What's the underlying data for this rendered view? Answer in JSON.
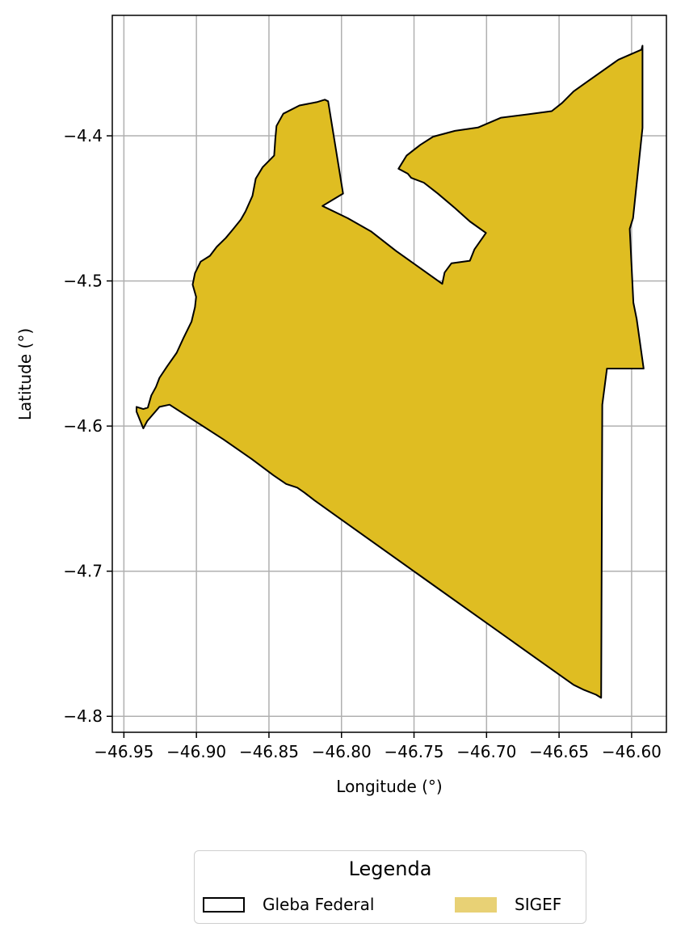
{
  "chart_data": {
    "type": "map",
    "title": "",
    "xlabel": "Longitude (°)",
    "ylabel": "Latitude (°)",
    "xlim": [
      -46.958,
      -46.576
    ],
    "ylim": [
      -4.811,
      -4.317
    ],
    "x_ticks": [
      "−46.95",
      "−46.90",
      "−46.85",
      "−46.80",
      "−46.75",
      "−46.70",
      "−46.65",
      "−46.60"
    ],
    "x_tick_values": [
      -46.95,
      -46.9,
      -46.85,
      -46.8,
      -46.75,
      -46.7,
      -46.65,
      -46.6
    ],
    "y_ticks": [
      "−4.4",
      "−4.5",
      "−4.6",
      "−4.7",
      "−4.8"
    ],
    "y_tick_values": [
      -4.4,
      -4.5,
      -4.6,
      -4.7,
      -4.8
    ],
    "grid": true,
    "legend": {
      "title": "Legenda",
      "placement": "bottom-center",
      "entries": [
        {
          "label": "Gleba Federal",
          "style": "outline",
          "edge_color": "#000000",
          "fill_color": "none"
        },
        {
          "label": "SIGEF",
          "style": "fill",
          "edge_color": "none",
          "fill_color": "#e8d175"
        }
      ]
    },
    "series": [
      {
        "name": "SIGEF",
        "fill_color": "#dfbd22",
        "edge_color": "#000000",
        "polygon_lonlat": [
          [
            -46.9413,
            -4.5868
          ],
          [
            -46.9366,
            -4.5883
          ],
          [
            -46.9335,
            -4.5873
          ],
          [
            -46.9311,
            -4.5789
          ],
          [
            -46.9279,
            -4.573
          ],
          [
            -46.9255,
            -4.5668
          ],
          [
            -46.92,
            -4.5586
          ],
          [
            -46.9136,
            -4.5495
          ],
          [
            -46.9089,
            -4.5393
          ],
          [
            -46.9034,
            -4.528
          ],
          [
            -46.901,
            -4.518
          ],
          [
            -46.9002,
            -4.511
          ],
          [
            -46.9026,
            -4.5025
          ],
          [
            -46.901,
            -4.4946
          ],
          [
            -46.8971,
            -4.4867
          ],
          [
            -46.8907,
            -4.4827
          ],
          [
            -46.886,
            -4.4765
          ],
          [
            -46.8797,
            -4.4703
          ],
          [
            -46.8749,
            -4.4646
          ],
          [
            -46.8694,
            -4.4578
          ],
          [
            -46.8662,
            -4.4521
          ],
          [
            -46.8614,
            -4.4414
          ],
          [
            -46.8591,
            -4.4295
          ],
          [
            -46.8543,
            -4.4216
          ],
          [
            -46.8464,
            -4.4136
          ],
          [
            -46.8456,
            -4.4023
          ],
          [
            -46.8448,
            -4.3932
          ],
          [
            -46.8401,
            -4.3848
          ],
          [
            -46.829,
            -4.3791
          ],
          [
            -46.8171,
            -4.3768
          ],
          [
            -46.8115,
            -4.3751
          ],
          [
            -46.8092,
            -4.3762
          ],
          [
            -46.7989,
            -4.4398
          ],
          [
            -46.8131,
            -4.4483
          ],
          [
            -46.7956,
            -4.4568
          ],
          [
            -46.7797,
            -4.4658
          ],
          [
            -46.7623,
            -4.4794
          ],
          [
            -46.744,
            -4.4924
          ],
          [
            -46.7305,
            -4.502
          ],
          [
            -46.7289,
            -4.4942
          ],
          [
            -46.7242,
            -4.4878
          ],
          [
            -46.7115,
            -4.4861
          ],
          [
            -46.7083,
            -4.4782
          ],
          [
            -46.7004,
            -4.4669
          ],
          [
            -46.7115,
            -4.459
          ],
          [
            -46.7217,
            -4.4499
          ],
          [
            -46.7337,
            -4.4397
          ],
          [
            -46.7432,
            -4.4323
          ],
          [
            -46.7519,
            -4.429
          ],
          [
            -46.7543,
            -4.4261
          ],
          [
            -46.7607,
            -4.4227
          ],
          [
            -46.7551,
            -4.4136
          ],
          [
            -46.7456,
            -4.4062
          ],
          [
            -46.7369,
            -4.4006
          ],
          [
            -46.7218,
            -4.3966
          ],
          [
            -46.7059,
            -4.3943
          ],
          [
            -46.69,
            -4.3875
          ],
          [
            -46.6717,
            -4.3852
          ],
          [
            -46.6551,
            -4.383
          ],
          [
            -46.6479,
            -4.3773
          ],
          [
            -46.64,
            -4.3694
          ],
          [
            -46.6321,
            -4.3637
          ],
          [
            -46.6091,
            -4.3475
          ],
          [
            -46.5932,
            -4.3406
          ],
          [
            -46.5925,
            -4.3379
          ],
          [
            -46.5925,
            -4.3946
          ],
          [
            -46.599,
            -4.4567
          ],
          [
            -46.6013,
            -4.4641
          ],
          [
            -46.5988,
            -4.515
          ],
          [
            -46.5965,
            -4.5263
          ],
          [
            -46.5917,
            -4.5604
          ],
          [
            -46.617,
            -4.5604
          ],
          [
            -46.6202,
            -4.5853
          ],
          [
            -46.621,
            -4.7873
          ],
          [
            -46.6245,
            -4.7851
          ],
          [
            -46.6328,
            -4.7818
          ],
          [
            -46.64,
            -4.7783
          ],
          [
            -46.6662,
            -4.7597
          ],
          [
            -46.7464,
            -4.7027
          ],
          [
            -46.7916,
            -4.6705
          ],
          [
            -46.8186,
            -4.6512
          ],
          [
            -46.8256,
            -4.6458
          ],
          [
            -46.8305,
            -4.6424
          ],
          [
            -46.8381,
            -4.6399
          ],
          [
            -46.8468,
            -4.634
          ],
          [
            -46.8619,
            -4.6227
          ],
          [
            -46.8813,
            -4.6092
          ],
          [
            -46.9185,
            -4.5853
          ],
          [
            -46.9255,
            -4.5868
          ],
          [
            -46.9339,
            -4.5965
          ],
          [
            -46.9366,
            -4.6016
          ],
          [
            -46.9413,
            -4.59
          ]
        ]
      }
    ]
  }
}
